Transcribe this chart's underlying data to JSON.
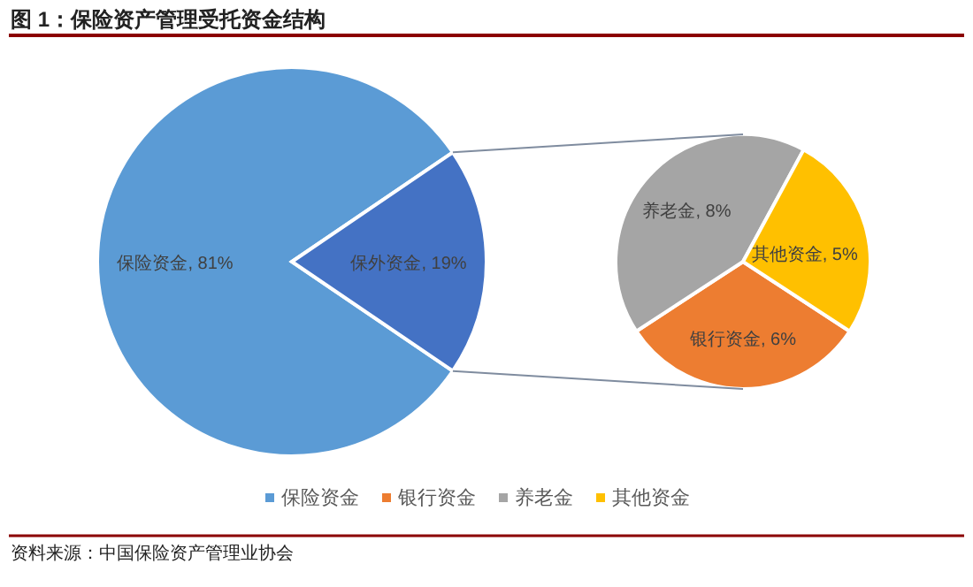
{
  "chart_data": [
    {
      "type": "pie",
      "title": "图 1：保险资产管理受托资金结构",
      "categories": [
        "保险资金",
        "保外资金"
      ],
      "values": [
        81,
        19
      ],
      "colors": [
        "#5b9bd5",
        "#4472c4"
      ],
      "value_labels": [
        ", 81%",
        ", 19%"
      ],
      "legend": "bottom",
      "annotations": [
        "资料来源：中国保险资产管理业协会"
      ]
    },
    {
      "type": "pie",
      "categories": [
        "银行资金",
        "养老金",
        "其他资金"
      ],
      "values": [
        6,
        8,
        5
      ],
      "colors": [
        "#ed7d31",
        "#a5a5a5",
        "#ffc000"
      ],
      "value_labels": [
        ", 6%",
        ", 8%",
        ", 5%"
      ],
      "legend": "bottom"
    }
  ]
}
